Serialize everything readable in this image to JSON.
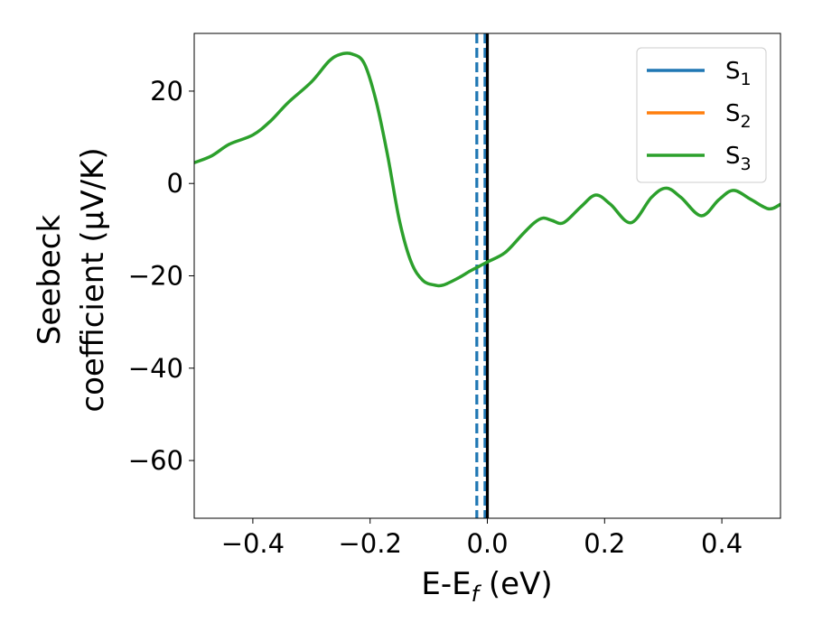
{
  "chart_data": {
    "type": "line",
    "xlabel": {
      "main": "E-E",
      "sub": "f",
      "suffix": " (eV)"
    },
    "ylabel": {
      "line1": "Seebeck",
      "line2": "coefficient  (μV/K)"
    },
    "xlim": [
      -0.5,
      0.5
    ],
    "ylim": [
      -72.5,
      32.5
    ],
    "xticks": [
      -0.4,
      -0.2,
      0.0,
      0.2,
      0.4
    ],
    "xtick_labels": [
      "−0.4",
      "−0.2",
      "0.0",
      "0.2",
      "0.4"
    ],
    "yticks": [
      -60,
      -40,
      -20,
      0,
      20
    ],
    "ytick_labels": [
      "−60",
      "−40",
      "−20",
      "0",
      "20"
    ],
    "legend_position": "top-right",
    "series": [
      {
        "name": "S",
        "sub": "1",
        "color": "#1f77b4",
        "x": [],
        "y": []
      },
      {
        "name": "S",
        "sub": "2",
        "color": "#ff7f0e",
        "x": [],
        "y": []
      },
      {
        "name": "S",
        "sub": "3",
        "color": "#2ca02c",
        "x": [
          -0.5,
          -0.47,
          -0.44,
          -0.4,
          -0.37,
          -0.34,
          -0.3,
          -0.27,
          -0.25,
          -0.23,
          -0.21,
          -0.19,
          -0.17,
          -0.15,
          -0.13,
          -0.11,
          -0.09,
          -0.075,
          -0.05,
          -0.03,
          -0.015,
          0.0,
          0.03,
          0.06,
          0.08,
          0.095,
          0.11,
          0.13,
          0.16,
          0.185,
          0.21,
          0.245,
          0.28,
          0.305,
          0.33,
          0.365,
          0.395,
          0.42,
          0.45,
          0.48,
          0.5
        ],
        "y": [
          4.5,
          6.0,
          8.5,
          10.5,
          13.5,
          17.5,
          22.0,
          26.5,
          28.0,
          28.0,
          26.0,
          18.0,
          6.0,
          -8.0,
          -17.0,
          -21.0,
          -22.0,
          -22.0,
          -20.5,
          -19.0,
          -18.0,
          -17.0,
          -15.0,
          -11.0,
          -8.5,
          -7.5,
          -8.0,
          -8.5,
          -5.0,
          -2.5,
          -4.5,
          -8.5,
          -3.0,
          -1.0,
          -3.0,
          -7.0,
          -3.5,
          -1.5,
          -3.5,
          -5.5,
          -4.5
        ]
      }
    ],
    "vlines": [
      {
        "x": -0.018,
        "style": "dashed",
        "color": "#1f77b4"
      },
      {
        "x": -0.004,
        "style": "dashed",
        "color": "#1f77b4"
      },
      {
        "x": 0.0,
        "style": "solid",
        "color": "#000000"
      }
    ]
  }
}
